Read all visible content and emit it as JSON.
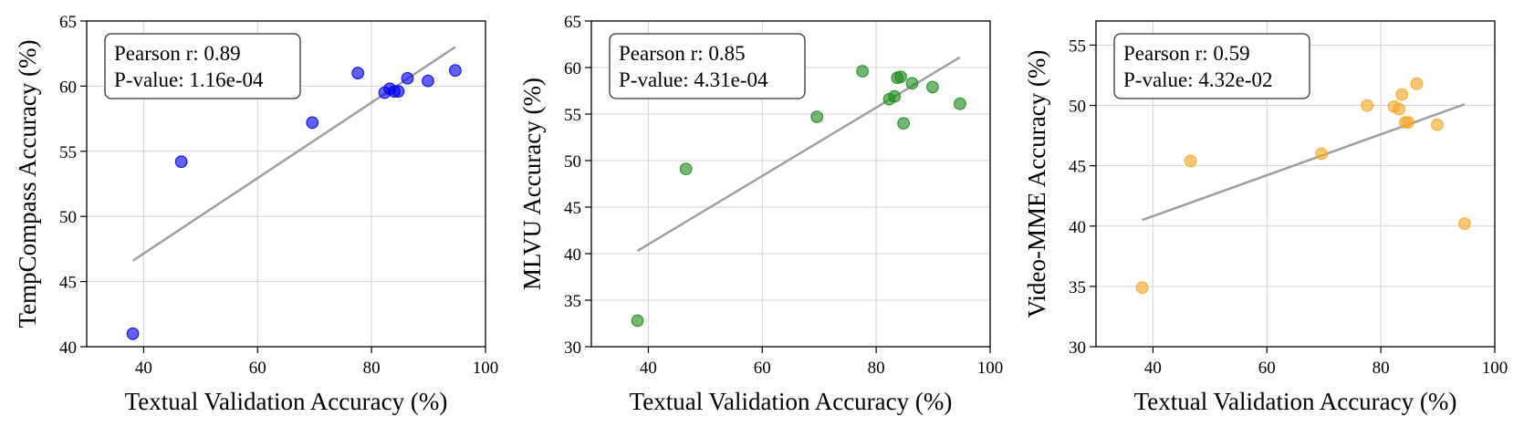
{
  "chart_data": [
    {
      "type": "scatter",
      "xlabel": "Textual Validation Accuracy (%)",
      "ylabel": "TempCompass Accuracy (%)",
      "xlim": [
        30,
        100
      ],
      "ylim": [
        40,
        65
      ],
      "xticks": [
        40,
        60,
        80,
        100
      ],
      "yticks": [
        40,
        45,
        50,
        55,
        60,
        65
      ],
      "grid": true,
      "color": "#0000ee",
      "stats": {
        "pearson": "Pearson r: 0.89",
        "pvalue": "P-value: 1.16e-04"
      },
      "points": [
        {
          "x": 38.1,
          "y": 41.0
        },
        {
          "x": 46.6,
          "y": 54.2
        },
        {
          "x": 69.6,
          "y": 57.2
        },
        {
          "x": 77.6,
          "y": 61.0
        },
        {
          "x": 82.3,
          "y": 59.5
        },
        {
          "x": 83.2,
          "y": 59.8
        },
        {
          "x": 84.0,
          "y": 59.6
        },
        {
          "x": 84.7,
          "y": 59.6
        },
        {
          "x": 86.3,
          "y": 60.6
        },
        {
          "x": 89.9,
          "y": 60.4
        },
        {
          "x": 94.7,
          "y": 61.2
        }
      ],
      "fit": {
        "x": [
          38.1,
          94.7
        ],
        "y": [
          46.6,
          63.0
        ]
      }
    },
    {
      "type": "scatter",
      "xlabel": "Textual Validation Accuracy (%)",
      "ylabel": "MLVU Accuracy (%)",
      "xlim": [
        30,
        100
      ],
      "ylim": [
        30,
        65
      ],
      "xticks": [
        40,
        60,
        80,
        100
      ],
      "yticks": [
        30,
        35,
        40,
        45,
        50,
        55,
        60,
        65
      ],
      "grid": true,
      "color": "#1b8a1b",
      "stats": {
        "pearson": "Pearson r: 0.85",
        "pvalue": "P-value: 4.31e-04"
      },
      "points": [
        {
          "x": 38.1,
          "y": 32.8
        },
        {
          "x": 46.6,
          "y": 49.1
        },
        {
          "x": 69.6,
          "y": 54.7
        },
        {
          "x": 77.6,
          "y": 59.6
        },
        {
          "x": 82.3,
          "y": 56.6
        },
        {
          "x": 83.2,
          "y": 56.9
        },
        {
          "x": 83.7,
          "y": 58.9
        },
        {
          "x": 84.3,
          "y": 59.0
        },
        {
          "x": 84.8,
          "y": 54.0
        },
        {
          "x": 86.3,
          "y": 58.3
        },
        {
          "x": 89.9,
          "y": 57.9
        },
        {
          "x": 94.7,
          "y": 56.1
        }
      ],
      "fit": {
        "x": [
          38.1,
          94.7
        ],
        "y": [
          40.3,
          61.1
        ]
      }
    },
    {
      "type": "scatter",
      "xlabel": "Textual Validation Accuracy (%)",
      "ylabel": "Video-MME Accuracy (%)",
      "xlim": [
        30,
        100
      ],
      "ylim": [
        30,
        57
      ],
      "xticks": [
        40,
        60,
        80,
        100
      ],
      "yticks": [
        30,
        35,
        40,
        45,
        50,
        55
      ],
      "grid": true,
      "color": "#f5a623",
      "stats": {
        "pearson": "Pearson r: 0.59",
        "pvalue": "P-value: 4.32e-02"
      },
      "points": [
        {
          "x": 38.1,
          "y": 34.9
        },
        {
          "x": 46.6,
          "y": 45.4
        },
        {
          "x": 69.6,
          "y": 46.0
        },
        {
          "x": 77.6,
          "y": 50.0
        },
        {
          "x": 82.3,
          "y": 49.9
        },
        {
          "x": 83.2,
          "y": 49.7
        },
        {
          "x": 83.7,
          "y": 50.9
        },
        {
          "x": 84.3,
          "y": 48.6
        },
        {
          "x": 84.8,
          "y": 48.6
        },
        {
          "x": 86.3,
          "y": 51.8
        },
        {
          "x": 89.9,
          "y": 48.4
        },
        {
          "x": 94.7,
          "y": 40.2
        }
      ],
      "fit": {
        "x": [
          38.1,
          94.7
        ],
        "y": [
          40.5,
          50.1
        ]
      }
    }
  ]
}
